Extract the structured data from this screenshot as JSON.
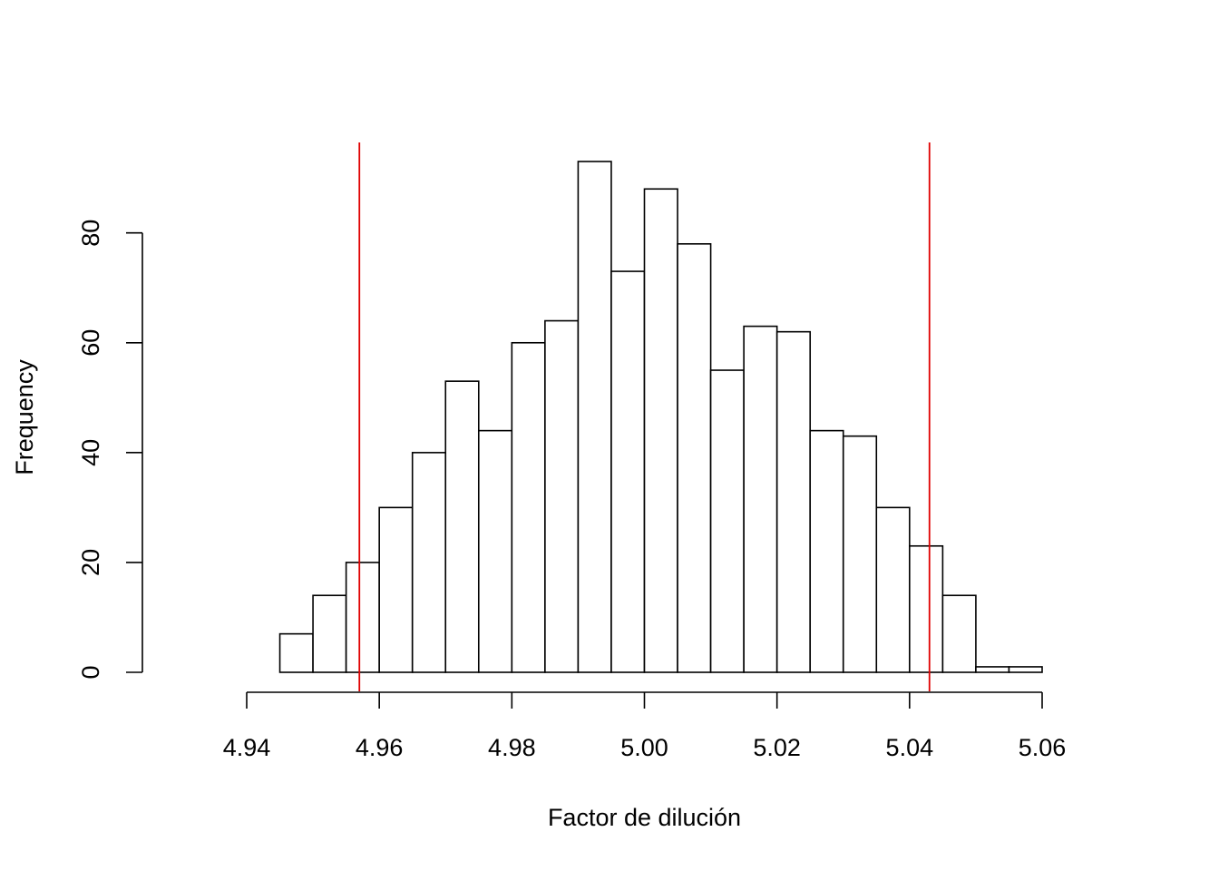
{
  "chart_data": {
    "type": "bar",
    "subtype": "histogram",
    "title": "",
    "xlabel": "Factor de dilución",
    "ylabel": "Frequency",
    "bin_width": 0.005,
    "bin_start": 4.945,
    "values": [
      7,
      14,
      20,
      30,
      40,
      53,
      44,
      60,
      64,
      93,
      73,
      88,
      78,
      55,
      63,
      62,
      44,
      43,
      30,
      23,
      14,
      1,
      1
    ],
    "xlim": [
      4.94,
      5.06
    ],
    "ylim": [
      0,
      93
    ],
    "x_ticks": [
      4.94,
      4.96,
      4.98,
      5.0,
      5.02,
      5.04,
      5.06
    ],
    "x_tick_labels": [
      "4.94",
      "4.96",
      "4.98",
      "5.00",
      "5.02",
      "5.04",
      "5.06"
    ],
    "y_ticks": [
      0,
      20,
      40,
      60,
      80
    ],
    "y_tick_labels": [
      "0",
      "20",
      "40",
      "60",
      "80"
    ],
    "reference_lines": [
      {
        "x": 4.957,
        "color": "#e00000"
      },
      {
        "x": 5.043,
        "color": "#e00000"
      }
    ],
    "grid": false,
    "colors": {
      "bar_fill": "#ffffff",
      "bar_stroke": "#000000",
      "reference_line": "#e00000"
    }
  }
}
